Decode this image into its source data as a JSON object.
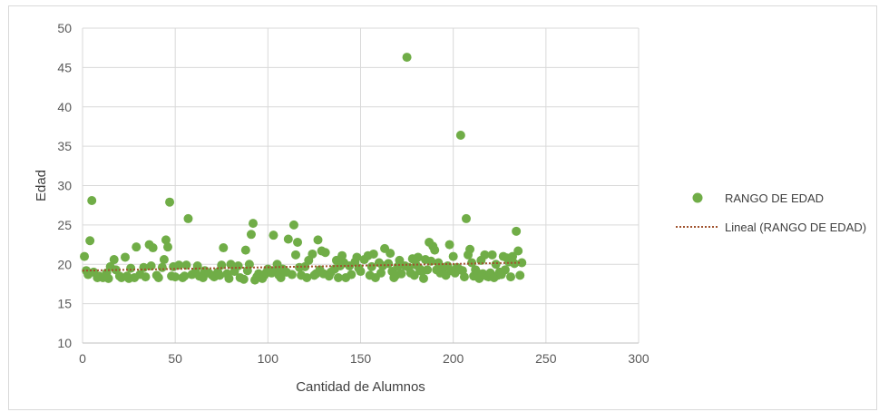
{
  "chart_data": {
    "type": "scatter",
    "title": "",
    "xlabel": "Cantidad de Alumnos",
    "ylabel": "Edad",
    "xlim": [
      0,
      300
    ],
    "ylim": [
      10,
      50
    ],
    "x_ticks": [
      0,
      50,
      100,
      150,
      200,
      250,
      300
    ],
    "y_ticks": [
      10,
      15,
      20,
      25,
      30,
      35,
      40,
      45,
      50
    ],
    "grid": true,
    "legend_position": "right",
    "colors": {
      "points": "#70ad47",
      "trendline": "#a0522d",
      "grid": "#d9d9d9"
    },
    "series": [
      {
        "name": "RANGO DE EDAD",
        "points": [
          [
            1,
            21
          ],
          [
            2,
            19.2
          ],
          [
            3,
            18.7
          ],
          [
            4,
            23
          ],
          [
            5,
            28.1
          ],
          [
            6,
            19
          ],
          [
            8,
            18.3
          ],
          [
            9,
            18.5
          ],
          [
            11,
            18.3
          ],
          [
            13,
            18.9
          ],
          [
            14,
            18.2
          ],
          [
            15,
            19.7
          ],
          [
            17,
            20.6
          ],
          [
            18,
            19.3
          ],
          [
            20,
            18.5
          ],
          [
            21,
            18.3
          ],
          [
            23,
            20.9
          ],
          [
            24,
            18.5
          ],
          [
            25,
            18.2
          ],
          [
            26,
            19.5
          ],
          [
            28,
            18.3
          ],
          [
            29,
            22.2
          ],
          [
            31,
            18.7
          ],
          [
            33,
            19.6
          ],
          [
            34,
            18.4
          ],
          [
            36,
            22.5
          ],
          [
            37,
            19.8
          ],
          [
            38,
            22.1
          ],
          [
            40,
            18.6
          ],
          [
            41,
            18.3
          ],
          [
            43,
            19.6
          ],
          [
            44,
            20.6
          ],
          [
            45,
            23.1
          ],
          [
            46,
            22.2
          ],
          [
            47,
            27.9
          ],
          [
            48,
            18.5
          ],
          [
            49,
            19.7
          ],
          [
            50,
            18.4
          ],
          [
            52,
            19.9
          ],
          [
            54,
            18.3
          ],
          [
            55,
            18.5
          ],
          [
            56,
            19.9
          ],
          [
            57,
            25.8
          ],
          [
            59,
            18.7
          ],
          [
            61,
            19.1
          ],
          [
            62,
            19.8
          ],
          [
            63,
            18.5
          ],
          [
            65,
            18.3
          ],
          [
            66,
            19.2
          ],
          [
            68,
            18.9
          ],
          [
            70,
            18.6
          ],
          [
            71,
            18.4
          ],
          [
            73,
            19
          ],
          [
            74,
            18.6
          ],
          [
            75,
            19.9
          ],
          [
            76,
            22.1
          ],
          [
            78,
            18.8
          ],
          [
            79,
            18.2
          ],
          [
            80,
            20
          ],
          [
            82,
            19.1
          ],
          [
            84,
            19.8
          ],
          [
            85,
            18.3
          ],
          [
            87,
            18.1
          ],
          [
            88,
            21.8
          ],
          [
            89,
            19.2
          ],
          [
            90,
            20
          ],
          [
            91,
            23.8
          ],
          [
            92,
            25.2
          ],
          [
            93,
            18
          ],
          [
            94,
            18.4
          ],
          [
            95,
            18.8
          ],
          [
            97,
            18.2
          ],
          [
            98,
            18.6
          ],
          [
            99,
            18.9
          ],
          [
            100,
            19.4
          ],
          [
            102,
            18.9
          ],
          [
            103,
            23.7
          ],
          [
            104,
            19.2
          ],
          [
            105,
            20
          ],
          [
            106,
            18.6
          ],
          [
            107,
            18.3
          ],
          [
            108,
            19.4
          ],
          [
            110,
            19
          ],
          [
            111,
            23.2
          ],
          [
            113,
            18.7
          ],
          [
            114,
            25
          ],
          [
            115,
            21.2
          ],
          [
            116,
            22.8
          ],
          [
            117,
            19.6
          ],
          [
            118,
            18.6
          ],
          [
            120,
            19.7
          ],
          [
            121,
            18.3
          ],
          [
            122,
            20.5
          ],
          [
            124,
            21.3
          ],
          [
            125,
            18.6
          ],
          [
            126,
            18.8
          ],
          [
            127,
            23.1
          ],
          [
            128,
            19.3
          ],
          [
            129,
            21.7
          ],
          [
            130,
            18.8
          ],
          [
            131,
            21.5
          ],
          [
            133,
            18.5
          ],
          [
            134,
            19
          ],
          [
            136,
            19.4
          ],
          [
            137,
            20.5
          ],
          [
            138,
            18.3
          ],
          [
            139,
            19.8
          ],
          [
            140,
            21.1
          ],
          [
            141,
            20.2
          ],
          [
            142,
            18.3
          ],
          [
            144,
            19.8
          ],
          [
            145,
            18.7
          ],
          [
            147,
            20.3
          ],
          [
            148,
            20.9
          ],
          [
            149,
            19.5
          ],
          [
            150,
            19.1
          ],
          [
            152,
            20.6
          ],
          [
            154,
            21.1
          ],
          [
            155,
            18.6
          ],
          [
            156,
            19.7
          ],
          [
            157,
            21.3
          ],
          [
            158,
            18.3
          ],
          [
            160,
            20.2
          ],
          [
            161,
            18.9
          ],
          [
            162,
            19.8
          ],
          [
            163,
            22
          ],
          [
            165,
            20.1
          ],
          [
            166,
            21.4
          ],
          [
            167,
            19.1
          ],
          [
            168,
            18.3
          ],
          [
            169,
            18.6
          ],
          [
            170,
            19.7
          ],
          [
            171,
            20.5
          ],
          [
            172,
            18.8
          ],
          [
            174,
            19.8
          ],
          [
            175,
            46.3
          ],
          [
            176,
            19.6
          ],
          [
            177,
            18.9
          ],
          [
            178,
            20.7
          ],
          [
            179,
            18.6
          ],
          [
            180,
            19.9
          ],
          [
            181,
            20.9
          ],
          [
            182,
            19.4
          ],
          [
            183,
            19.1
          ],
          [
            184,
            18.2
          ],
          [
            185,
            20.6
          ],
          [
            186,
            19.3
          ],
          [
            187,
            22.8
          ],
          [
            188,
            20.4
          ],
          [
            189,
            22.3
          ],
          [
            190,
            21.8
          ],
          [
            191,
            19.3
          ],
          [
            192,
            20.2
          ],
          [
            193,
            18.9
          ],
          [
            195,
            19.6
          ],
          [
            196,
            18.6
          ],
          [
            197,
            19.8
          ],
          [
            198,
            22.5
          ],
          [
            199,
            19.2
          ],
          [
            200,
            21
          ],
          [
            201,
            18.9
          ],
          [
            202,
            19.6
          ],
          [
            203,
            19.4
          ],
          [
            204,
            36.4
          ],
          [
            205,
            19.2
          ],
          [
            206,
            18.4
          ],
          [
            207,
            25.8
          ],
          [
            208,
            21.2
          ],
          [
            209,
            21.9
          ],
          [
            210,
            20.2
          ],
          [
            211,
            18.5
          ],
          [
            212,
            19.3
          ],
          [
            213,
            18.9
          ],
          [
            214,
            18.2
          ],
          [
            215,
            20.5
          ],
          [
            216,
            18.8
          ],
          [
            217,
            21.2
          ],
          [
            218,
            18.5
          ],
          [
            219,
            18.4
          ],
          [
            220,
            18.9
          ],
          [
            221,
            21.2
          ],
          [
            222,
            18.3
          ],
          [
            223,
            20
          ],
          [
            224,
            18.6
          ],
          [
            225,
            19
          ],
          [
            226,
            18.7
          ],
          [
            227,
            21
          ],
          [
            228,
            19.3
          ],
          [
            229,
            20.8
          ],
          [
            230,
            20.3
          ],
          [
            231,
            18.4
          ],
          [
            232,
            21
          ],
          [
            233,
            20.1
          ],
          [
            234,
            24.2
          ],
          [
            235,
            21.7
          ],
          [
            236,
            18.6
          ],
          [
            237,
            20.2
          ]
        ]
      },
      {
        "name": "Lineal (RANGO DE EDAD)",
        "type": "trendline",
        "x": [
          0,
          236
        ],
        "y": [
          19.2,
          20.2
        ]
      }
    ]
  }
}
